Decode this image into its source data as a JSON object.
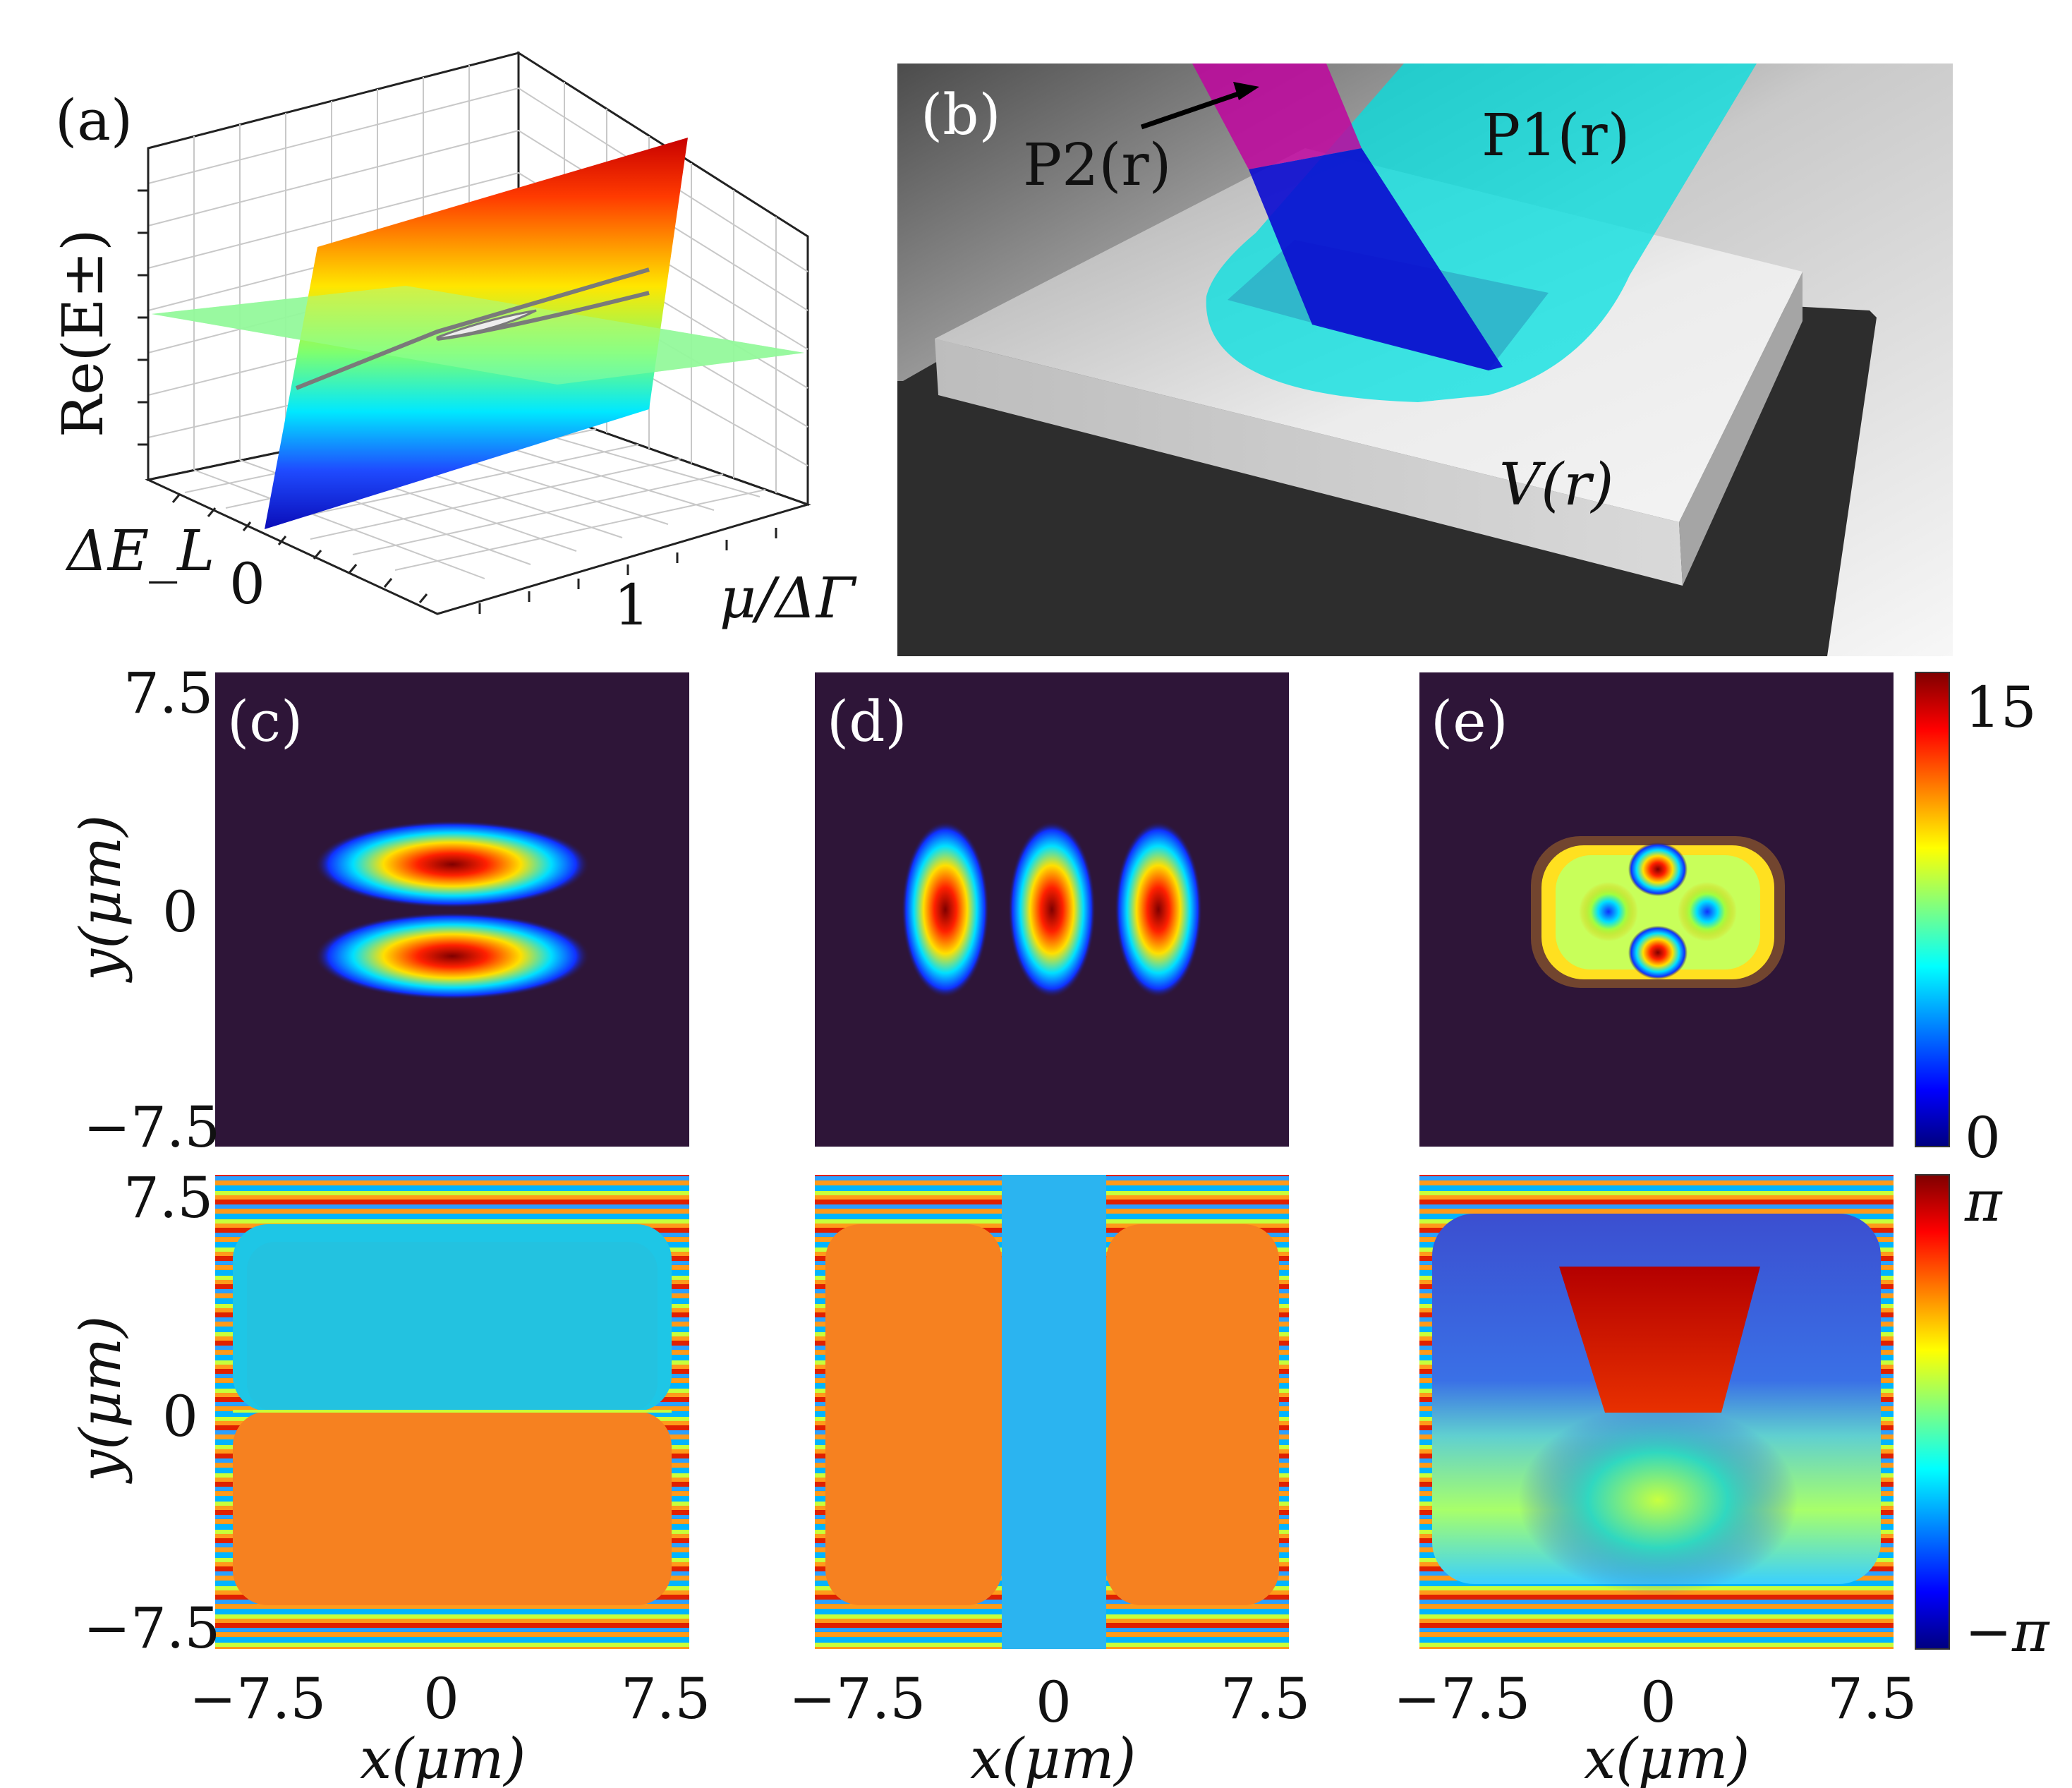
{
  "panels": {
    "a": {
      "label": "(a)",
      "zlabel": "Re(E±)",
      "xlabel": "ΔE_L",
      "ylabel": "μ/ΔΓ",
      "x_tick": "0",
      "y_tick": "1"
    },
    "b": {
      "label": "(b)",
      "beam1": "P1(r)",
      "beam2": "P2(r)",
      "potential": "V(r)"
    },
    "c": {
      "label": "(c)"
    },
    "d": {
      "label": "(d)"
    },
    "e": {
      "label": "(e)"
    }
  },
  "axes": {
    "y_label": "y(μm)",
    "x_label": "x(μm)",
    "ticks": [
      "−7.5",
      "0",
      "7.5"
    ],
    "y_top_tick": "7.5",
    "y_mid_tick": "0",
    "y_bot_tick": "−7.5"
  },
  "colorbars": {
    "density": {
      "max": "15",
      "min": "0"
    },
    "phase": {
      "max": "π",
      "min": "−π"
    }
  },
  "colors": {
    "background_dark": "#2e1538",
    "jet_red": "#7f0000",
    "jet_orange": "#f68120",
    "jet_cyan": "#1ec6e6",
    "jet_blue": "#00007f",
    "beam_magenta": "#c0059f",
    "beam_cyan": "#00e8e8"
  }
}
